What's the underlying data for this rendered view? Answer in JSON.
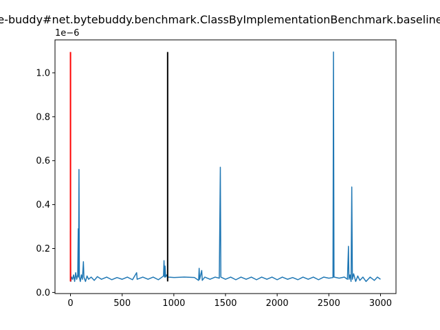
{
  "chart_data": {
    "type": "line",
    "title": "e-buddy#net.bytebuddy.benchmark.ClassByImplementationBenchmark.baseline",
    "xlabel": "",
    "ylabel": "",
    "y_offset_label": "1e−6",
    "xlim": [
      -150,
      3150
    ],
    "ylim": [
      -5e-09,
      1.15e-06
    ],
    "x_ticks": [
      0,
      500,
      1000,
      1500,
      2000,
      2500,
      3000
    ],
    "x_tick_labels": [
      "0",
      "500",
      "1000",
      "1500",
      "2000",
      "2500",
      "3000"
    ],
    "y_ticks": [
      0.0,
      0.2,
      0.4,
      0.6,
      0.8,
      1.0
    ],
    "y_tick_labels": [
      "0.0",
      "0.2",
      "0.4",
      "0.6",
      "0.8",
      "1.0"
    ],
    "grid": false,
    "vlines": [
      {
        "x": 0,
        "ymin": 5e-08,
        "ymax": 1.095e-06,
        "color": "#ff0000"
      },
      {
        "x": 940,
        "ymin": 5e-08,
        "ymax": 1.095e-06,
        "color": "#000000"
      }
    ],
    "series": [
      {
        "color": "#1f77b4",
        "points": [
          [
            0,
            2.8e-07
          ],
          [
            3,
            5e-08
          ],
          [
            10,
            7e-08
          ],
          [
            20,
            6e-08
          ],
          [
            30,
            8e-08
          ],
          [
            40,
            5e-08
          ],
          [
            50,
            9e-08
          ],
          [
            60,
            6e-08
          ],
          [
            70,
            8e-08
          ],
          [
            75,
            2.9e-07
          ],
          [
            78,
            7e-08
          ],
          [
            82,
            5.6e-07
          ],
          [
            86,
            7e-08
          ],
          [
            95,
            5e-08
          ],
          [
            105,
            8e-08
          ],
          [
            115,
            6e-08
          ],
          [
            125,
            1.4e-07
          ],
          [
            130,
            7e-08
          ],
          [
            145,
            5e-08
          ],
          [
            160,
            7.5e-08
          ],
          [
            175,
            6e-08
          ],
          [
            200,
            7e-08
          ],
          [
            230,
            5.5e-08
          ],
          [
            260,
            7.2e-08
          ],
          [
            300,
            6e-08
          ],
          [
            350,
            7e-08
          ],
          [
            400,
            5.8e-08
          ],
          [
            450,
            6.8e-08
          ],
          [
            500,
            6e-08
          ],
          [
            550,
            7e-08
          ],
          [
            600,
            5.8e-08
          ],
          [
            640,
            9e-08
          ],
          [
            645,
            6e-08
          ],
          [
            700,
            7e-08
          ],
          [
            750,
            6e-08
          ],
          [
            800,
            7e-08
          ],
          [
            850,
            5.8e-08
          ],
          [
            880,
            6.8e-08
          ],
          [
            900,
            7.5e-08
          ],
          [
            905,
            1.45e-07
          ],
          [
            910,
            7e-08
          ],
          [
            915,
            1.2e-07
          ],
          [
            920,
            7e-08
          ],
          [
            930,
            8e-08
          ],
          [
            940,
            7e-08
          ],
          [
            1000,
            6.8e-08
          ],
          [
            1100,
            7e-08
          ],
          [
            1200,
            6.8e-08
          ],
          [
            1240,
            5.5e-08
          ],
          [
            1245,
            1.1e-07
          ],
          [
            1250,
            6e-08
          ],
          [
            1270,
            1e-07
          ],
          [
            1275,
            5.5e-08
          ],
          [
            1300,
            7e-08
          ],
          [
            1350,
            6e-08
          ],
          [
            1400,
            7e-08
          ],
          [
            1440,
            6.5e-08
          ],
          [
            1450,
            5.7e-07
          ],
          [
            1455,
            7e-08
          ],
          [
            1500,
            6e-08
          ],
          [
            1550,
            7e-08
          ],
          [
            1600,
            5.8e-08
          ],
          [
            1650,
            7e-08
          ],
          [
            1700,
            6e-08
          ],
          [
            1750,
            7e-08
          ],
          [
            1800,
            5.8e-08
          ],
          [
            1850,
            7e-08
          ],
          [
            1900,
            6e-08
          ],
          [
            1950,
            7e-08
          ],
          [
            2000,
            5.8e-08
          ],
          [
            2050,
            7e-08
          ],
          [
            2100,
            6e-08
          ],
          [
            2150,
            6.8e-08
          ],
          [
            2200,
            5.8e-08
          ],
          [
            2250,
            7e-08
          ],
          [
            2300,
            6e-08
          ],
          [
            2350,
            7e-08
          ],
          [
            2400,
            5.8e-08
          ],
          [
            2450,
            7e-08
          ],
          [
            2500,
            6.5e-08
          ],
          [
            2540,
            6.8e-08
          ],
          [
            2545,
            1.095e-06
          ],
          [
            2550,
            7e-08
          ],
          [
            2600,
            6.5e-08
          ],
          [
            2650,
            7e-08
          ],
          [
            2680,
            6e-08
          ],
          [
            2690,
            2.1e-07
          ],
          [
            2695,
            6e-08
          ],
          [
            2705,
            8e-08
          ],
          [
            2715,
            5e-08
          ],
          [
            2722,
            4.8e-07
          ],
          [
            2728,
            6e-08
          ],
          [
            2740,
            8.5e-08
          ],
          [
            2760,
            5e-08
          ],
          [
            2780,
            7.5e-08
          ],
          [
            2800,
            5.5e-08
          ],
          [
            2830,
            7e-08
          ],
          [
            2860,
            5e-08
          ],
          [
            2900,
            7e-08
          ],
          [
            2940,
            5.5e-08
          ],
          [
            2970,
            7e-08
          ],
          [
            3000,
            6e-08
          ]
        ]
      }
    ]
  }
}
